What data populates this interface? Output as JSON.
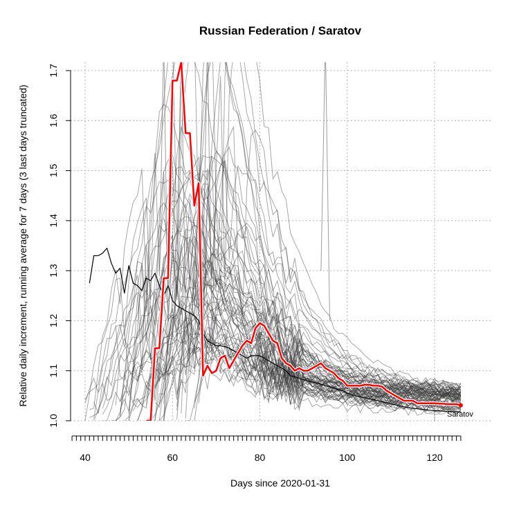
{
  "chart_data": {
    "type": "line",
    "title": "Russian Federation / Saratov",
    "xlabel": "Days since 2020-01-31",
    "ylabel": "Relative daily increment, running average for 7 days (3 last days truncated)",
    "xlim": [
      37,
      128
    ],
    "ylim": [
      1.0,
      1.72
    ],
    "x_ticks": [
      40,
      60,
      80,
      100,
      120
    ],
    "x_tick_labels": [
      "40",
      "60",
      "80",
      "100",
      "120"
    ],
    "y_ticks": [
      1.0,
      1.1,
      1.2,
      1.3,
      1.4,
      1.5,
      1.6,
      1.7
    ],
    "y_tick_labels": [
      "1.0",
      "1.1",
      "1.2",
      "1.3",
      "1.4",
      "1.5",
      "1.6",
      "1.7"
    ],
    "grid": true,
    "annotation": "Saratov",
    "colors": {
      "highlight": "#ff0000",
      "country": "#000000",
      "regions": "#555555"
    },
    "series": [
      {
        "name": "Saratov",
        "color": "#ff0000",
        "x": [
          54,
          55,
          56,
          57,
          58,
          59,
          60,
          61,
          62,
          63,
          64,
          65,
          66,
          67,
          68,
          69,
          70,
          71,
          72,
          73,
          74,
          75,
          76,
          77,
          78,
          79,
          80,
          81,
          82,
          83,
          84,
          85,
          86,
          87,
          88,
          89,
          90,
          91,
          92,
          93,
          94,
          95,
          96,
          97,
          98,
          99,
          100,
          101,
          102,
          103,
          104,
          105,
          106,
          107,
          108,
          109,
          110,
          111,
          112,
          113,
          114,
          115,
          116,
          117,
          118,
          119,
          120,
          121,
          122,
          123,
          124,
          125,
          126
        ],
        "y": [
          1.0,
          1.0,
          1.145,
          1.145,
          1.285,
          1.285,
          1.68,
          1.68,
          1.717,
          1.575,
          1.575,
          1.43,
          1.475,
          1.09,
          1.11,
          1.095,
          1.1,
          1.125,
          1.13,
          1.105,
          1.12,
          1.135,
          1.15,
          1.16,
          1.155,
          1.185,
          1.195,
          1.19,
          1.175,
          1.16,
          1.155,
          1.125,
          1.115,
          1.11,
          1.1,
          1.105,
          1.1,
          1.1,
          1.105,
          1.11,
          1.115,
          1.105,
          1.1,
          1.095,
          1.085,
          1.08,
          1.07,
          1.07,
          1.07,
          1.07,
          1.072,
          1.072,
          1.07,
          1.07,
          1.068,
          1.06,
          1.055,
          1.05,
          1.045,
          1.04,
          1.04,
          1.04,
          1.035,
          1.035,
          1.035,
          1.035,
          1.035,
          1.034,
          1.034,
          1.033,
          1.033,
          1.033,
          1.031
        ]
      },
      {
        "name": "Russian Federation",
        "color": "#000000",
        "x": [
          41,
          42,
          43,
          44,
          45,
          46,
          47,
          48,
          49,
          50,
          51,
          52,
          53,
          54,
          55,
          56,
          57,
          58,
          59,
          60,
          61,
          62,
          63,
          64,
          65,
          66,
          67,
          68,
          69,
          70,
          71,
          72,
          73,
          74,
          75,
          76,
          77,
          78,
          79,
          80,
          81,
          82,
          83,
          84,
          85,
          86,
          87,
          88,
          89,
          90,
          91,
          92,
          93,
          94,
          95,
          96,
          97,
          98,
          99,
          100,
          101,
          102,
          103,
          104,
          105,
          106,
          107,
          108,
          109,
          110,
          111,
          112,
          113,
          114,
          115,
          116,
          117,
          118,
          119,
          120,
          121,
          122,
          123,
          124,
          125,
          126
        ],
        "y": [
          1.275,
          1.33,
          1.33,
          1.335,
          1.345,
          1.315,
          1.295,
          1.305,
          1.255,
          1.31,
          1.275,
          1.27,
          1.26,
          1.285,
          1.28,
          1.295,
          1.27,
          1.25,
          1.27,
          1.24,
          1.23,
          1.225,
          1.22,
          1.215,
          1.21,
          1.2,
          1.175,
          1.16,
          1.155,
          1.15,
          1.15,
          1.148,
          1.145,
          1.14,
          1.135,
          1.13,
          1.125,
          1.13,
          1.13,
          1.13,
          1.125,
          1.12,
          1.115,
          1.11,
          1.105,
          1.1,
          1.09,
          1.088,
          1.085,
          1.082,
          1.08,
          1.077,
          1.075,
          1.073,
          1.07,
          1.068,
          1.065,
          1.062,
          1.06,
          1.055,
          1.052,
          1.05,
          1.048,
          1.046,
          1.044,
          1.042,
          1.04,
          1.038,
          1.036,
          1.034,
          1.032,
          1.03,
          1.028,
          1.026,
          1.025,
          1.024,
          1.023,
          1.022,
          1.021,
          1.02,
          1.02,
          1.019,
          1.019,
          1.018,
          1.018,
          1.018
        ]
      }
    ],
    "background_regions_count": 70
  }
}
